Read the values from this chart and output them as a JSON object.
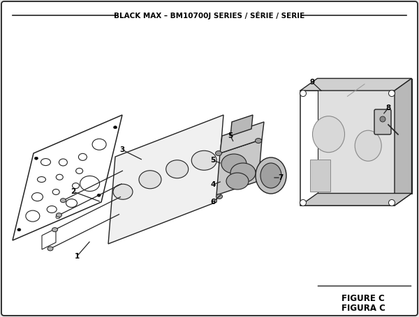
{
  "title": "BLACK MAX – BM10700J SERIES / SÉRIE / SERIE",
  "figure_label": "FIGURE C",
  "figura_label": "FIGURA C",
  "bg_color": "#e8e8e8",
  "line_color": "#222222",
  "part_outline": "#222222",
  "title_fontsize": 7.5,
  "label_fontsize": 8.5
}
